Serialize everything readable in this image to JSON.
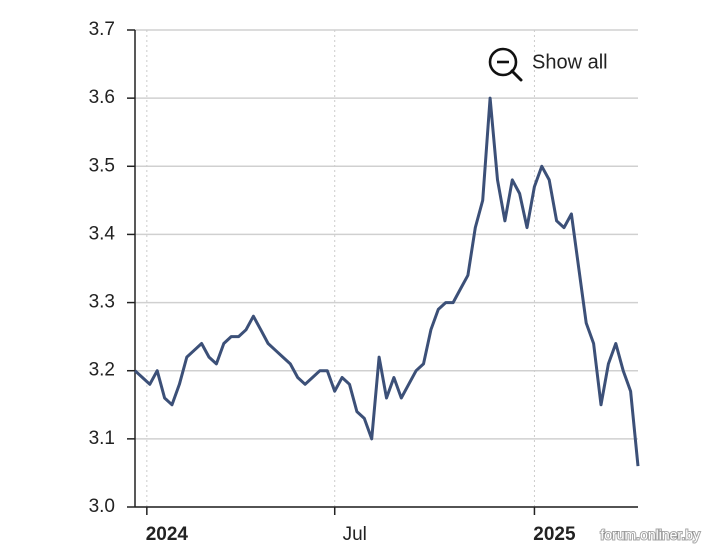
{
  "button": "Show all",
  "watermark": "forum.onliner.by",
  "chart_data": {
    "type": "line",
    "values": [
      3.2,
      3.19,
      3.18,
      3.2,
      3.16,
      3.15,
      3.18,
      3.22,
      3.23,
      3.24,
      3.22,
      3.21,
      3.24,
      3.25,
      3.25,
      3.26,
      3.28,
      3.26,
      3.24,
      3.23,
      3.22,
      3.21,
      3.19,
      3.18,
      3.19,
      3.2,
      3.2,
      3.17,
      3.19,
      3.18,
      3.14,
      3.13,
      3.1,
      3.22,
      3.16,
      3.19,
      3.16,
      3.18,
      3.2,
      3.21,
      3.26,
      3.29,
      3.3,
      3.3,
      3.32,
      3.34,
      3.41,
      3.45,
      3.6,
      3.48,
      3.42,
      3.48,
      3.46,
      3.41,
      3.47,
      3.5,
      3.48,
      3.42,
      3.41,
      3.43,
      3.35,
      3.27,
      3.24,
      3.15,
      3.21,
      3.24,
      3.2,
      3.17,
      3.06
    ],
    "color": "#3c5078",
    "xlim": [
      0,
      68
    ],
    "xticks": [
      {
        "value": 1.6,
        "label": "2024"
      },
      {
        "value": 27,
        "label": "Jul"
      },
      {
        "value": 54,
        "label": "2025"
      }
    ],
    "ylim": [
      3.0,
      3.7
    ],
    "yticks": [
      {
        "value": 3.0,
        "label": "3.0"
      },
      3.1,
      3.2,
      3.3,
      3.4,
      3.5,
      3.6,
      3.7
    ],
    "grid": true
  }
}
